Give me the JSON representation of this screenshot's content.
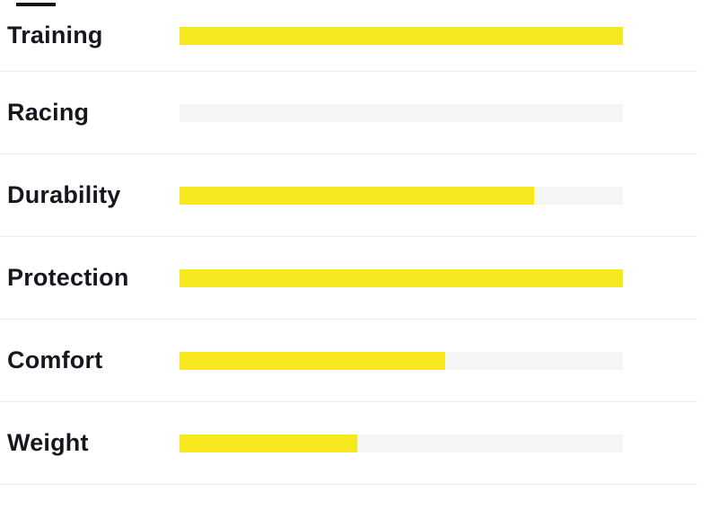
{
  "chart_data": {
    "type": "bar",
    "orientation": "horizontal",
    "title": "",
    "xlabel": "",
    "ylabel": "",
    "xlim": [
      0,
      100
    ],
    "grid": false,
    "legend": false,
    "categories": [
      "Training",
      "Racing",
      "Durability",
      "Protection",
      "Comfort",
      "Weight"
    ],
    "values": [
      100,
      0,
      80,
      100,
      60,
      40
    ],
    "value_unit": "percent of track filled",
    "bar_color": "#f7e71e",
    "track_color": "#f5f5f5"
  },
  "colors": {
    "background": "#ffffff",
    "bar_fill": "#f7e71e",
    "bar_track": "#f5f5f5",
    "row_divider": "#ececec",
    "label_text": "#16161e",
    "top_dash": "#141414"
  }
}
